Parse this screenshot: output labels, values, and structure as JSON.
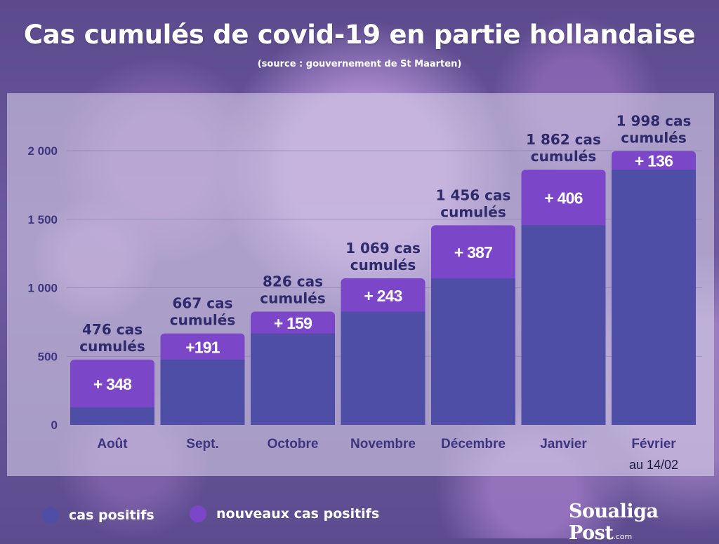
{
  "header": {
    "title": "Cas cumulés de covid-19 en partie hollandaise",
    "subtitle": "(source : gouvernement de St Maarten)"
  },
  "chart_data": {
    "type": "bar",
    "stacked": true,
    "categories": [
      "Août",
      "Sept.",
      "Octobre",
      "Novembre",
      "Décembre",
      "Janvier",
      "Février"
    ],
    "category_sublabels": [
      "",
      "",
      "",
      "",
      "",
      "",
      "au 14/02"
    ],
    "series": [
      {
        "name": "cas positifs",
        "color": "#4f4ea7",
        "values": [
          128,
          476,
          667,
          826,
          1069,
          1456,
          1862
        ]
      },
      {
        "name": "nouveaux cas positifs",
        "color": "#7c46c8",
        "values": [
          348,
          191,
          159,
          243,
          387,
          406,
          136
        ]
      }
    ],
    "segment_labels": [
      "+ 348",
      "+191",
      "+ 159",
      "+ 243",
      "+ 387",
      "+ 406",
      "+ 136"
    ],
    "total_labels": [
      [
        "476 cas",
        "cumulés"
      ],
      [
        "667 cas",
        "cumulés"
      ],
      [
        "826 cas",
        "cumulés"
      ],
      [
        "1 069 cas",
        "cumulés"
      ],
      [
        "1 456 cas",
        "cumulés"
      ],
      [
        "1 862 cas",
        "cumulés"
      ],
      [
        "1 998 cas",
        "cumulés"
      ]
    ],
    "totals": [
      476,
      667,
      826,
      1069,
      1456,
      1862,
      1998
    ],
    "yticks": [
      0,
      500,
      1000,
      1500,
      2000
    ],
    "ytick_labels": [
      "0",
      "500",
      "1 000",
      "1 500",
      "2 000"
    ],
    "ylim": [
      0,
      2000
    ],
    "grid": true,
    "legend_position": "bottom-left"
  },
  "legend": {
    "items": [
      {
        "label": "cas positifs",
        "color": "#4f4ea7"
      },
      {
        "label": "nouveaux cas positifs",
        "color": "#7c46c8"
      }
    ]
  },
  "branding": {
    "name": "Soualiga Post",
    "suffix": ".com"
  },
  "colors": {
    "axis_text": "#3d3580",
    "label_text": "#2e2a6b"
  }
}
